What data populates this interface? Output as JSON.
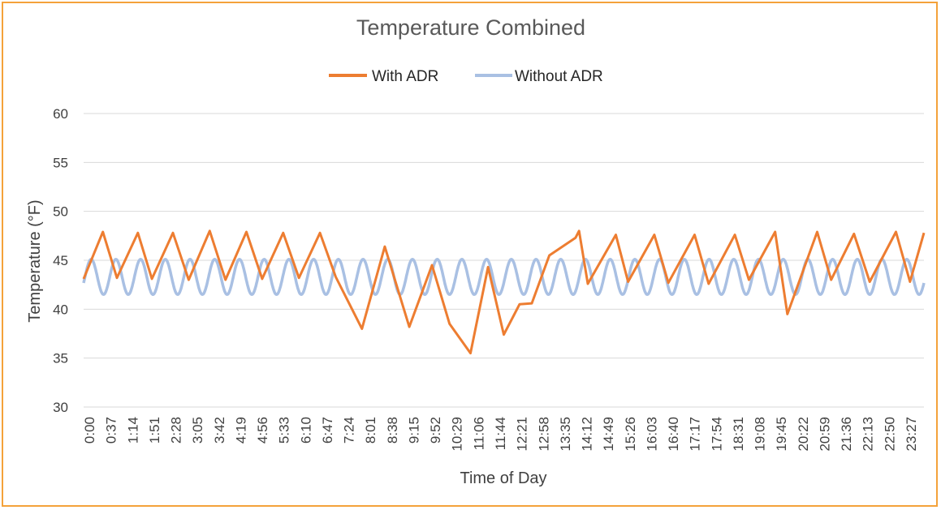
{
  "chart_data": {
    "type": "line",
    "title": "Temperature Combined",
    "xlabel": "Time of Day",
    "ylabel": "Temperature (°F)",
    "ylim": [
      30,
      60
    ],
    "yticks": [
      "30",
      "35",
      "40",
      "45",
      "50",
      "55",
      "60"
    ],
    "grid": true,
    "legend_position": "top-center",
    "x_range_hours": [
      0,
      24
    ],
    "categories": [
      "0:00",
      "0:37",
      "1:14",
      "1:51",
      "2:28",
      "3:05",
      "3:42",
      "4:19",
      "4:56",
      "5:33",
      "6:10",
      "6:47",
      "7:24",
      "8:01",
      "8:38",
      "9:15",
      "9:52",
      "10:29",
      "11:06",
      "11:44",
      "12:21",
      "12:58",
      "13:35",
      "14:12",
      "14:49",
      "15:26",
      "16:03",
      "16:40",
      "17:17",
      "17:54",
      "18:31",
      "19:08",
      "19:45",
      "20:22",
      "20:59",
      "21:36",
      "22:13",
      "22:50",
      "23:27"
    ],
    "series": [
      {
        "name": "With ADR",
        "color": "#ed7d31",
        "points": [
          [
            0.0,
            43.1
          ],
          [
            0.55,
            47.9
          ],
          [
            0.95,
            43.2
          ],
          [
            1.55,
            47.8
          ],
          [
            1.95,
            43.1
          ],
          [
            2.55,
            47.8
          ],
          [
            3.0,
            43.0
          ],
          [
            3.6,
            48.0
          ],
          [
            4.05,
            43.0
          ],
          [
            4.65,
            47.9
          ],
          [
            5.1,
            43.1
          ],
          [
            5.7,
            47.8
          ],
          [
            6.15,
            43.2
          ],
          [
            6.75,
            47.8
          ],
          [
            7.2,
            43.3
          ],
          [
            7.95,
            38.0
          ],
          [
            8.6,
            46.4
          ],
          [
            9.3,
            38.2
          ],
          [
            9.95,
            44.5
          ],
          [
            10.45,
            38.5
          ],
          [
            11.05,
            35.5
          ],
          [
            11.55,
            44.3
          ],
          [
            12.0,
            37.4
          ],
          [
            12.45,
            40.5
          ],
          [
            12.8,
            40.6
          ],
          [
            13.3,
            45.5
          ],
          [
            14.05,
            47.3
          ],
          [
            14.15,
            48.0
          ],
          [
            14.4,
            42.6
          ],
          [
            15.2,
            47.6
          ],
          [
            15.55,
            42.8
          ],
          [
            16.3,
            47.6
          ],
          [
            16.7,
            42.7
          ],
          [
            17.45,
            47.6
          ],
          [
            17.85,
            42.6
          ],
          [
            18.6,
            47.6
          ],
          [
            19.0,
            43.0
          ],
          [
            19.75,
            47.9
          ],
          [
            20.1,
            39.5
          ],
          [
            20.95,
            47.9
          ],
          [
            21.35,
            43.0
          ],
          [
            22.0,
            47.7
          ],
          [
            22.45,
            42.8
          ],
          [
            23.2,
            47.9
          ],
          [
            23.6,
            42.8
          ],
          [
            24.0,
            47.8
          ]
        ]
      },
      {
        "name": "Without ADR",
        "color": "#a9c0e3",
        "low": 41.5,
        "high": 45.1,
        "cycles": 34
      }
    ]
  }
}
